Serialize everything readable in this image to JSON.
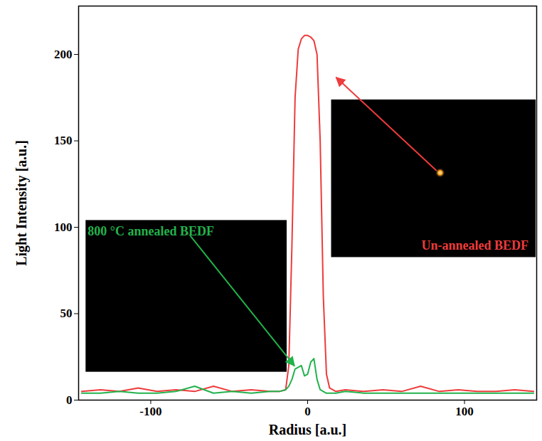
{
  "chart_data": {
    "type": "line",
    "x_label": "Radius [a.u.]",
    "y_label": "Light Intensity [a.u.]",
    "x": [
      -144,
      -132,
      -120,
      -108,
      -96,
      -84,
      -72,
      -60,
      -48,
      -36,
      -24,
      -18,
      -14,
      -12,
      -10,
      -8,
      -6,
      -4,
      -2,
      0,
      2,
      4,
      6,
      8,
      10,
      12,
      14,
      18,
      24,
      36,
      48,
      60,
      72,
      84,
      96,
      108,
      120,
      132,
      144
    ],
    "series": [
      {
        "name": "Un-annealed BEDF",
        "color": "#ee3b3b",
        "values": [
          5,
          6,
          5,
          7,
          5,
          6,
          5,
          8,
          5,
          6,
          5,
          5,
          6,
          20,
          90,
          175,
          203,
          209,
          211,
          211,
          210,
          208,
          200,
          150,
          60,
          15,
          7,
          5,
          6,
          5,
          6,
          5,
          8,
          5,
          6,
          5,
          5,
          6,
          5
        ]
      },
      {
        "name": "800 °C annealed BEDF",
        "color": "#22b24c",
        "values": [
          4,
          4,
          5,
          4,
          4,
          5,
          8,
          4,
          5,
          4,
          5,
          5,
          6,
          8,
          12,
          18,
          19,
          20,
          14,
          15,
          22,
          24,
          12,
          6,
          5,
          4,
          4,
          4,
          5,
          4,
          4,
          4,
          4,
          4,
          4,
          4,
          4,
          4,
          4
        ]
      }
    ],
    "xlim": [
      -146,
      146
    ],
    "ylim": [
      0,
      228
    ],
    "xticks": [
      -100,
      0,
      100
    ],
    "yticks": [
      0,
      50,
      100,
      150,
      200
    ]
  }
}
